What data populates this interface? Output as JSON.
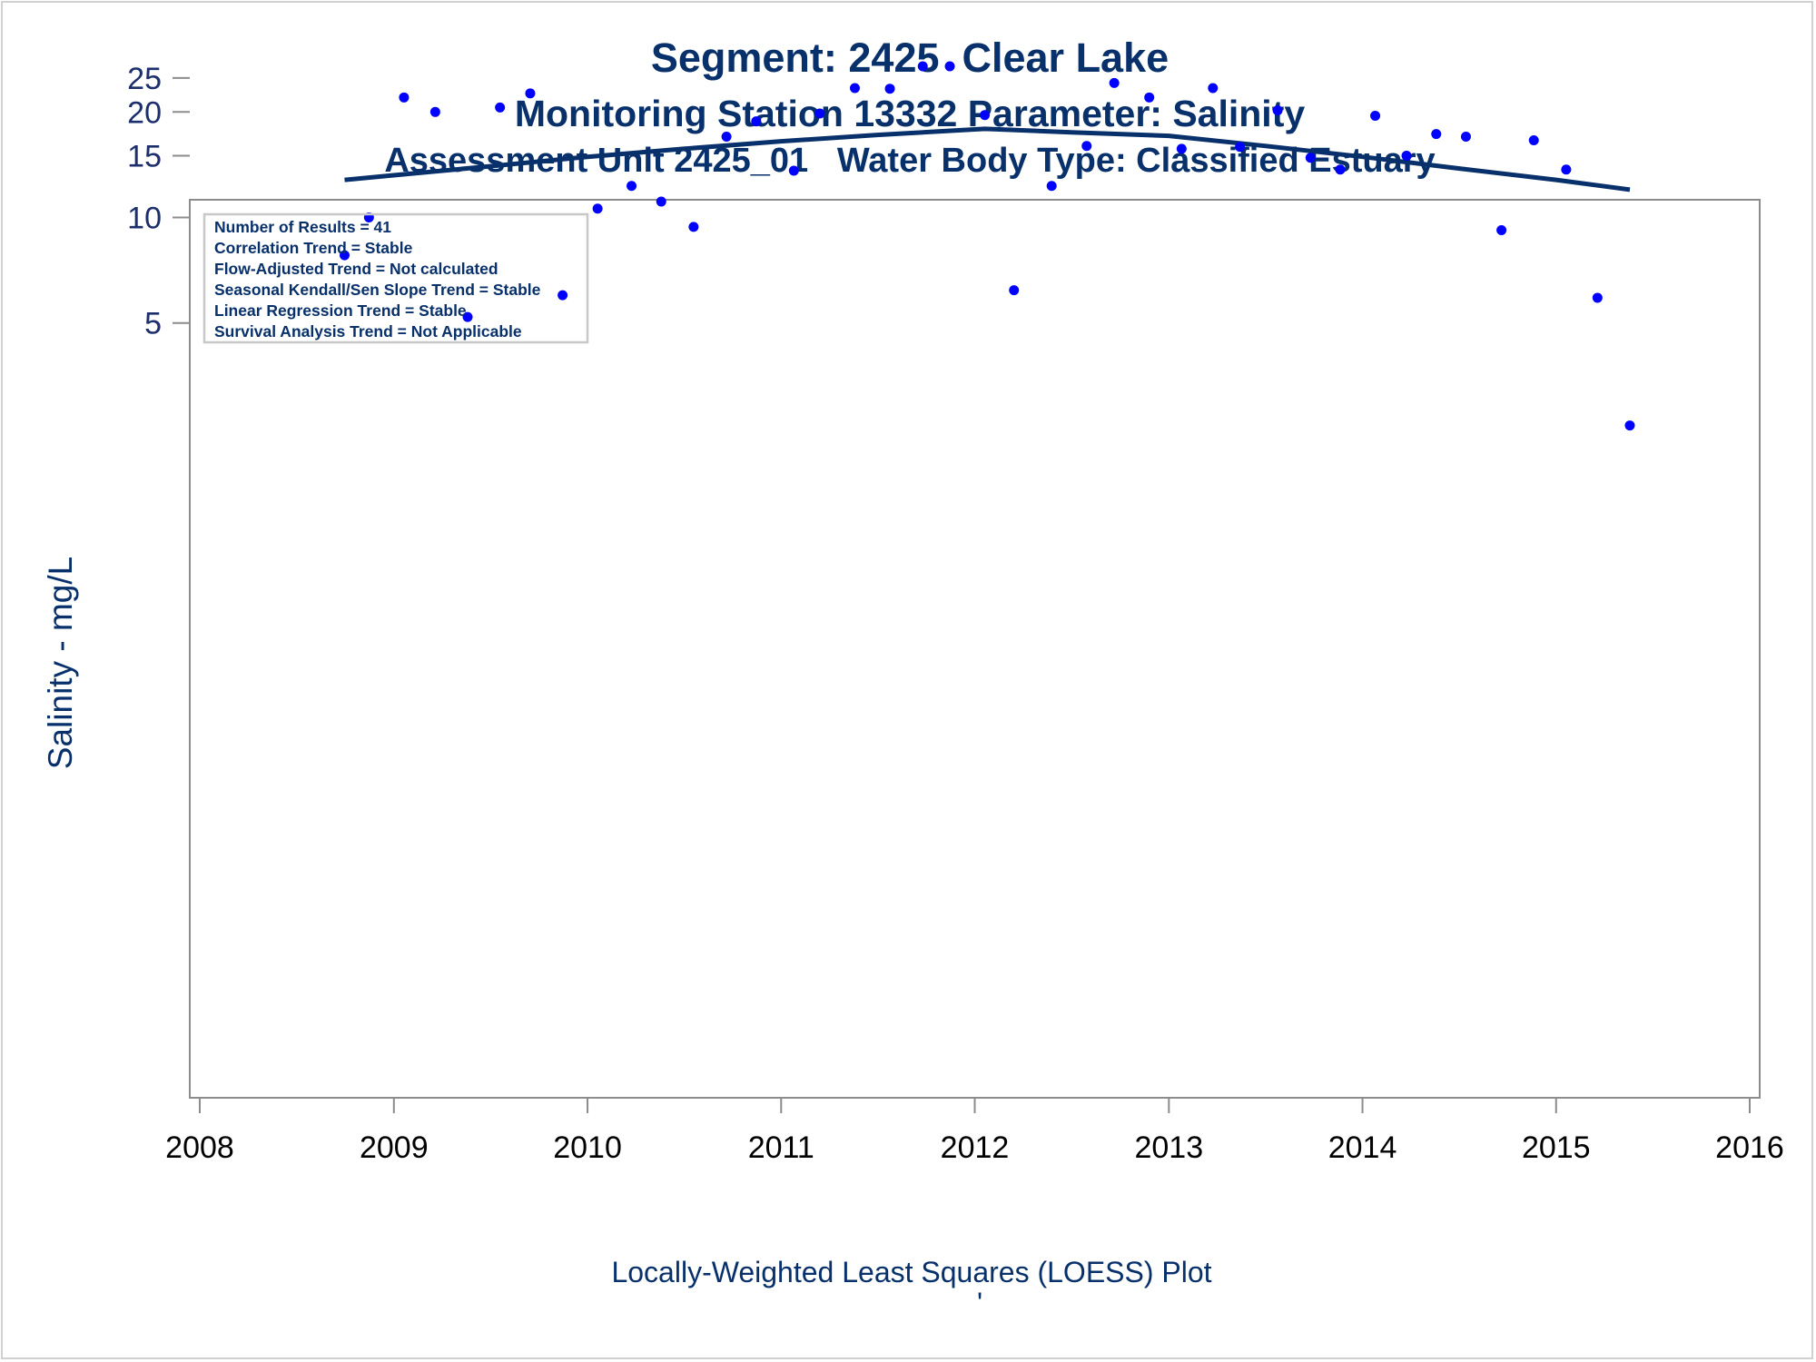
{
  "chart_data": {
    "type": "scatter",
    "title": "Segment: 2425  Clear Lake",
    "subtitle": "Monitoring Station 13332 Parameter: Salinity",
    "subtitle2": "Assessment Unit 2425_01   Water Body Type: Classified Estuary",
    "ylabel": "Salinity - mg/L",
    "footnote": "Locally-Weighted Least Squares (LOESS) Plot",
    "footnote_mark": "'",
    "y_scale": "log",
    "xlim": [
      "2008-01-01",
      "2016-01-01"
    ],
    "x_ticks": [
      "2008",
      "2009",
      "2010",
      "2011",
      "2012",
      "2013",
      "2014",
      "2015",
      "2016"
    ],
    "y_ticks": [
      5,
      10,
      15,
      20,
      25
    ],
    "grid": false,
    "stats_box": [
      "Number of Results = 41",
      "Correlation Trend = Stable",
      "Flow-Adjusted Trend = Not calculated",
      "Seasonal Kendall/Sen Slope Trend = Stable",
      "Linear Regression Trend = Stable",
      "Survival Analysis Trend = Not Applicable"
    ],
    "colors": {
      "points": "#0000ff",
      "loess_line": "#08306b",
      "text": "#08306b",
      "axis_frame": "#8c8c8c"
    },
    "series": [
      {
        "type": "scatter",
        "points": [
          {
            "x": "2008-09-30",
            "y": 7.8
          },
          {
            "x": "2008-11-15",
            "y": 10.0
          },
          {
            "x": "2009-01-20",
            "y": 22.0
          },
          {
            "x": "2009-03-20",
            "y": 20.0
          },
          {
            "x": "2009-05-20",
            "y": 5.2
          },
          {
            "x": "2009-07-20",
            "y": 20.6
          },
          {
            "x": "2009-09-15",
            "y": 22.6
          },
          {
            "x": "2009-11-15",
            "y": 6.0
          },
          {
            "x": "2010-01-20",
            "y": 10.6
          },
          {
            "x": "2010-03-25",
            "y": 12.3
          },
          {
            "x": "2010-05-20",
            "y": 11.1
          },
          {
            "x": "2010-07-20",
            "y": 9.4
          },
          {
            "x": "2010-09-20",
            "y": 17.0
          },
          {
            "x": "2010-11-15",
            "y": 18.8
          },
          {
            "x": "2011-01-25",
            "y": 13.6
          },
          {
            "x": "2011-03-15",
            "y": 19.8
          },
          {
            "x": "2011-05-20",
            "y": 23.4
          },
          {
            "x": "2011-07-25",
            "y": 23.3
          },
          {
            "x": "2011-09-25",
            "y": 27.0
          },
          {
            "x": "2011-11-15",
            "y": 27.0
          },
          {
            "x": "2012-01-20",
            "y": 19.6
          },
          {
            "x": "2012-03-15",
            "y": 6.2
          },
          {
            "x": "2012-05-25",
            "y": 12.3
          },
          {
            "x": "2012-07-30",
            "y": 16.0
          },
          {
            "x": "2012-09-20",
            "y": 24.2
          },
          {
            "x": "2012-11-25",
            "y": 22.0
          },
          {
            "x": "2013-01-25",
            "y": 15.7
          },
          {
            "x": "2013-03-25",
            "y": 23.4
          },
          {
            "x": "2013-05-15",
            "y": 15.9
          },
          {
            "x": "2013-07-25",
            "y": 20.2
          },
          {
            "x": "2013-09-25",
            "y": 14.8
          },
          {
            "x": "2013-11-20",
            "y": 13.7
          },
          {
            "x": "2014-01-25",
            "y": 19.5
          },
          {
            "x": "2014-03-25",
            "y": 15.0
          },
          {
            "x": "2014-05-20",
            "y": 17.3
          },
          {
            "x": "2014-07-15",
            "y": 17.0
          },
          {
            "x": "2014-09-20",
            "y": 9.2
          },
          {
            "x": "2014-11-20",
            "y": 16.6
          },
          {
            "x": "2015-01-20",
            "y": 13.7
          },
          {
            "x": "2015-03-20",
            "y": 5.9
          },
          {
            "x": "2015-05-20",
            "y": 2.55
          }
        ]
      },
      {
        "type": "line",
        "points": [
          {
            "x": "2008-09-30",
            "y": 12.8
          },
          {
            "x": "2009-01-01",
            "y": 13.2
          },
          {
            "x": "2009-07-01",
            "y": 14.0
          },
          {
            "x": "2010-01-01",
            "y": 14.9
          },
          {
            "x": "2010-07-01",
            "y": 15.7
          },
          {
            "x": "2011-01-01",
            "y": 16.5
          },
          {
            "x": "2011-07-01",
            "y": 17.2
          },
          {
            "x": "2012-01-20",
            "y": 17.9
          },
          {
            "x": "2012-07-01",
            "y": 17.5
          },
          {
            "x": "2013-01-01",
            "y": 17.1
          },
          {
            "x": "2013-07-01",
            "y": 16.0
          },
          {
            "x": "2014-01-01",
            "y": 14.9
          },
          {
            "x": "2014-07-01",
            "y": 13.8
          },
          {
            "x": "2015-01-01",
            "y": 12.8
          },
          {
            "x": "2015-05-20",
            "y": 12.0
          }
        ]
      }
    ]
  }
}
